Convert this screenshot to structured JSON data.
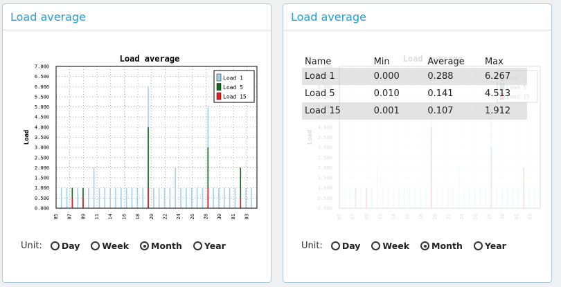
{
  "panels": [
    {
      "title": "Load average"
    },
    {
      "title": "Load average"
    }
  ],
  "unit": {
    "label": "Unit:",
    "options": [
      "Day",
      "Week",
      "Month",
      "Year"
    ],
    "selected": "Month"
  },
  "stats_table": {
    "headers": [
      "Name",
      "Min",
      "Average",
      "Max"
    ],
    "rows": [
      {
        "name": "Load 1",
        "min": "0.000",
        "avg": "0.288",
        "max": "6.267"
      },
      {
        "name": "Load 5",
        "min": "0.010",
        "avg": "0.141",
        "max": "4.513"
      },
      {
        "name": "Load 15",
        "min": "0.001",
        "avg": "0.107",
        "max": "1.912"
      }
    ]
  },
  "chart_data": {
    "type": "bar",
    "title": "Load average",
    "ylabel": "Load",
    "xlabel": "",
    "ylim": [
      0,
      7
    ],
    "ytick_labels": [
      "0.000",
      "0.500",
      "1.000",
      "1.500",
      "2.000",
      "2.500",
      "3.000",
      "3.500",
      "4.000",
      "4.500",
      "5.000",
      "5.500",
      "6.000",
      "6.500",
      "7.000"
    ],
    "xtick_labels": [
      "05",
      "07",
      "09",
      "11",
      "14",
      "16",
      "18",
      "20",
      "22",
      "24",
      "26",
      "28",
      "30",
      "01",
      "03"
    ],
    "grid": true,
    "legend": "top-right",
    "series": [
      {
        "name": "Load 1",
        "color": "#9fd3ec",
        "values": [
          1.0,
          1.0,
          1.0,
          1.0,
          1.0,
          1.0,
          2.0,
          1.0,
          1.0,
          1.0,
          1.0,
          1.0,
          1.0,
          1.0,
          1.0,
          1.0,
          6.0,
          1.0,
          1.0,
          1.0,
          1.0,
          2.0,
          1.0,
          1.0,
          1.0,
          1.0,
          1.0,
          5.0,
          1.0,
          1.0,
          1.0,
          1.0,
          1.0,
          1.0,
          1.0,
          1.0
        ]
      },
      {
        "name": "Load 5",
        "color": "#0e6b1e",
        "values": [
          0.0,
          0.0,
          1.0,
          0.0,
          1.0,
          0.0,
          0.0,
          0.0,
          0.0,
          0.0,
          0.0,
          0.0,
          0.0,
          0.0,
          0.0,
          0.0,
          4.0,
          0.0,
          0.0,
          0.0,
          0.0,
          0.0,
          0.0,
          0.0,
          0.0,
          0.0,
          0.0,
          3.0,
          0.0,
          0.0,
          0.0,
          0.0,
          0.0,
          2.0,
          0.0,
          0.0
        ]
      },
      {
        "name": "Load 15",
        "color": "#e62020",
        "values": [
          0.0,
          0.0,
          0.5,
          0.0,
          0.5,
          0.0,
          0.0,
          0.0,
          0.0,
          0.0,
          0.0,
          0.0,
          0.0,
          0.0,
          0.0,
          0.0,
          1.0,
          0.0,
          0.0,
          0.0,
          0.0,
          0.0,
          0.0,
          0.0,
          0.0,
          0.0,
          0.0,
          1.0,
          0.0,
          0.0,
          0.0,
          0.0,
          0.0,
          0.5,
          0.0,
          0.0
        ]
      }
    ]
  }
}
